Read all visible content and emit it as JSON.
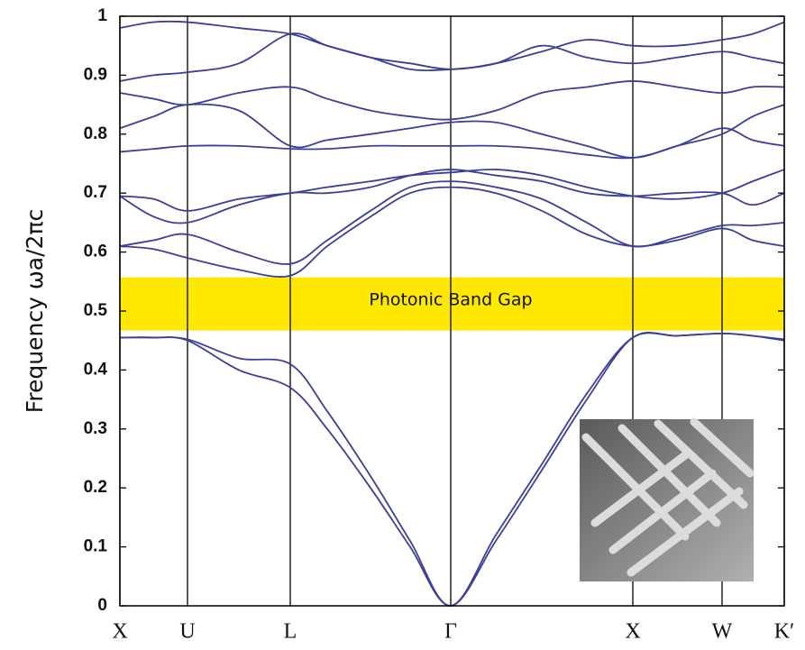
{
  "chart_data": {
    "type": "line",
    "y_label": "Frequency  ωa/2πc",
    "x": [
      0,
      0.375,
      0.75,
      1.32,
      1.89,
      2.3,
      2.78,
      3.22,
      3.67,
      4.17,
      4.68,
      5.18,
      5.69,
      6.18,
      6.68,
      7.02,
      7.37
    ],
    "xlim": [
      0,
      7.37
    ],
    "xticks": [
      {
        "value": 0,
        "label": "X"
      },
      {
        "value": 0.75,
        "label": "U"
      },
      {
        "value": 1.89,
        "label": "L"
      },
      {
        "value": 3.67,
        "label": "Γ"
      },
      {
        "value": 5.69,
        "label": "X"
      },
      {
        "value": 6.68,
        "label": "W"
      },
      {
        "value": 7.37,
        "label": "K′"
      }
    ],
    "ylim": [
      0,
      1
    ],
    "yticks": [
      0,
      0.1,
      0.2,
      0.3,
      0.4,
      0.5,
      0.6,
      0.7,
      0.8,
      0.9,
      1
    ],
    "grid": "x",
    "band_gap": {
      "label": "Photonic Band Gap",
      "range": [
        0.467,
        0.557
      ],
      "color": "#ffe800"
    },
    "series": [
      {
        "color": "#3b3f96",
        "values": [
          0.455,
          0.455,
          0.45,
          0.4,
          0.37,
          0.3,
          0.2,
          0.1,
          0,
          0.11,
          0.23,
          0.35,
          0.455,
          0.458,
          0.462,
          0.458,
          0.45
        ]
      },
      {
        "color": "#3b3f96",
        "values": [
          0.455,
          0.455,
          0.452,
          0.42,
          0.41,
          0.33,
          0.22,
          0.11,
          0,
          0.12,
          0.24,
          0.36,
          0.455,
          0.458,
          0.462,
          0.458,
          0.452
        ]
      },
      {
        "color": "#3b3f96",
        "values": [
          0.61,
          0.605,
          0.59,
          0.57,
          0.56,
          0.61,
          0.66,
          0.7,
          0.71,
          0.7,
          0.67,
          0.63,
          0.61,
          0.62,
          0.64,
          0.62,
          0.61
        ]
      },
      {
        "color": "#3b3f96",
        "values": [
          0.61,
          0.62,
          0.63,
          0.6,
          0.58,
          0.62,
          0.67,
          0.71,
          0.72,
          0.71,
          0.69,
          0.65,
          0.61,
          0.625,
          0.645,
          0.645,
          0.65
        ]
      },
      {
        "color": "#3b3f96",
        "values": [
          0.695,
          0.66,
          0.65,
          0.68,
          0.7,
          0.7,
          0.71,
          0.73,
          0.74,
          0.73,
          0.72,
          0.7,
          0.695,
          0.7,
          0.7,
          0.68,
          0.7
        ]
      },
      {
        "color": "#3b3f96",
        "values": [
          0.695,
          0.69,
          0.67,
          0.69,
          0.7,
          0.71,
          0.72,
          0.73,
          0.735,
          0.74,
          0.73,
          0.71,
          0.695,
          0.69,
          0.7,
          0.72,
          0.74
        ]
      },
      {
        "color": "#3b3f96",
        "values": [
          0.77,
          0.775,
          0.78,
          0.78,
          0.775,
          0.775,
          0.78,
          0.78,
          0.78,
          0.78,
          0.775,
          0.765,
          0.76,
          0.78,
          0.81,
          0.79,
          0.78
        ]
      },
      {
        "color": "#3b3f96",
        "values": [
          0.81,
          0.83,
          0.85,
          0.84,
          0.78,
          0.79,
          0.8,
          0.81,
          0.82,
          0.82,
          0.8,
          0.78,
          0.76,
          0.78,
          0.8,
          0.83,
          0.85
        ]
      },
      {
        "color": "#3b3f96",
        "values": [
          0.87,
          0.86,
          0.85,
          0.87,
          0.88,
          0.86,
          0.84,
          0.83,
          0.825,
          0.84,
          0.87,
          0.88,
          0.89,
          0.88,
          0.87,
          0.88,
          0.88
        ]
      },
      {
        "color": "#3b3f96",
        "values": [
          0.89,
          0.9,
          0.905,
          0.92,
          0.97,
          0.95,
          0.93,
          0.91,
          0.91,
          0.92,
          0.95,
          0.93,
          0.92,
          0.93,
          0.94,
          0.93,
          0.92
        ]
      },
      {
        "color": "#3b3f96",
        "values": [
          0.98,
          0.99,
          0.99,
          0.98,
          0.97,
          0.95,
          0.93,
          0.92,
          0.91,
          0.92,
          0.94,
          0.96,
          0.95,
          0.95,
          0.96,
          0.97,
          0.99
        ]
      }
    ]
  }
}
